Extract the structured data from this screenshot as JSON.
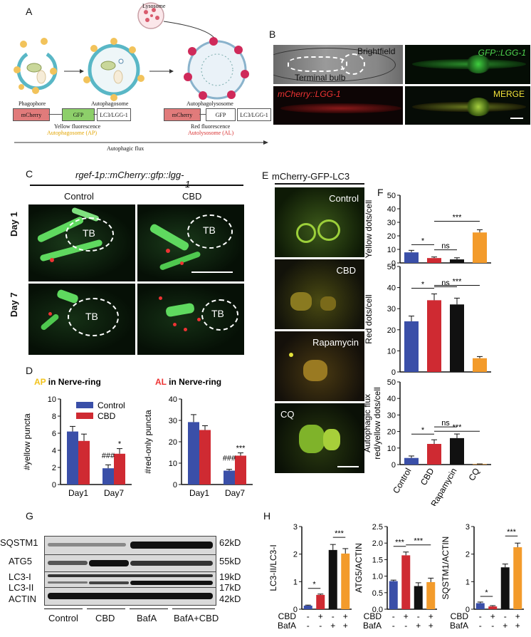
{
  "panels": {
    "A": "A",
    "B": "B",
    "C": "C",
    "D": "D",
    "E": "E",
    "F": "F",
    "G": "G",
    "H": "H"
  },
  "panelA": {
    "lysosome": "Lysosome",
    "phagophore": "Phagophore",
    "autophagosome": "Autophagosome",
    "autophagolysosome": "Autophagolysosome",
    "construct_mcherry": "mCherry",
    "construct_gfp": "GFP",
    "construct_lc3": "LC3/LGG-1",
    "yellow_fluor": "Yellow fluorescence",
    "ap_label": "Autophagosome (AP)",
    "red_fluor": "Red fluorescence",
    "al_label": "Autolysosome (AL)",
    "flux": "Autophagic flux"
  },
  "panelB": {
    "brightfield": "Brightfield",
    "terminal_bulb": "Terminal bulb",
    "gfp": "GFP::LGG-1",
    "mcherry": "mCherry::LGG-1",
    "merge": "MERGE"
  },
  "panelC": {
    "title": "rgef-1p::mCherry::gfp::lgg-",
    "title_wrap": "1",
    "control": "Control",
    "cbd": "CBD",
    "day1": "Day 1",
    "day7": "Day 7",
    "tb": "TB"
  },
  "panelE": {
    "title": "mCherry-GFP-LC3",
    "cells": [
      "Control",
      "CBD",
      "Rapamycin",
      "CQ"
    ]
  },
  "panelG": {
    "rows": [
      "SQSTM1",
      "ATG5",
      "LC3-I",
      "LC3-II",
      "ACTIN"
    ],
    "sizes": [
      "62kD",
      "55kD",
      "19kD",
      "17kD",
      "42kD"
    ],
    "groups": [
      "Control",
      "CBD",
      "BafA",
      "BafA+CBD"
    ]
  },
  "chart_data": [
    {
      "id": "D-left",
      "type": "bar",
      "title_prefix": "AP",
      "title_suffix": " in Nerve-ring",
      "ylabel": "#yellow puncta",
      "ylim": [
        0,
        10
      ],
      "yticks": [
        0,
        2,
        4,
        6,
        8,
        10
      ],
      "categories": [
        "Day1",
        "Day7"
      ],
      "series": [
        {
          "name": "Control",
          "values": [
            6.2,
            1.9
          ],
          "errors": [
            0.6,
            0.4
          ],
          "color": "#3a4fa8"
        },
        {
          "name": "CBD",
          "values": [
            5.1,
            3.6
          ],
          "errors": [
            0.8,
            0.6
          ],
          "color": "#cf2a32"
        }
      ],
      "annotations": [
        {
          "text": "###",
          "category": 1,
          "series": 0
        },
        {
          "text": "*",
          "category": 1,
          "series": 1
        }
      ],
      "legend": "top-right"
    },
    {
      "id": "D-right",
      "type": "bar",
      "title_prefix": "AL",
      "title_suffix": " in Nerve-ring",
      "ylabel": "#red-only puncta",
      "ylim": [
        0,
        40
      ],
      "yticks": [
        0,
        10,
        20,
        30,
        40
      ],
      "categories": [
        "Day1",
        "Day7"
      ],
      "series": [
        {
          "name": "Control",
          "values": [
            29.2,
            6.5
          ],
          "errors": [
            3.5,
            0.6
          ],
          "color": "#3a4fa8"
        },
        {
          "name": "CBD",
          "values": [
            25.5,
            13.5
          ],
          "errors": [
            2.0,
            1.3
          ],
          "color": "#cf2a32"
        }
      ],
      "annotations": [
        {
          "text": "###",
          "category": 1,
          "series": 0
        },
        {
          "text": "***",
          "category": 1,
          "series": 1
        }
      ]
    },
    {
      "id": "F-top",
      "type": "bar",
      "ylabel": "Yellow dots/cell",
      "ylim": [
        0,
        50
      ],
      "yticks": [
        0,
        10,
        20,
        30,
        40,
        50
      ],
      "categories": [
        "Control",
        "CBD",
        "Rapamycin",
        "CQ"
      ],
      "values": [
        7.8,
        3.6,
        2.6,
        22.5
      ],
      "errors": [
        1.5,
        0.8,
        1.2,
        2.0
      ],
      "colors": [
        "#3a4fa8",
        "#cf2a32",
        "#111111",
        "#f39b2b"
      ],
      "significance": [
        {
          "from": 0,
          "to": 1,
          "text": "*"
        },
        {
          "from": 1,
          "to": 2,
          "text": "ns"
        },
        {
          "from": 1,
          "to": 3,
          "text": "***"
        }
      ]
    },
    {
      "id": "F-mid",
      "type": "bar",
      "ylabel": "Red dots/cell",
      "ylim": [
        0,
        50
      ],
      "yticks": [
        0,
        10,
        20,
        30,
        40,
        50
      ],
      "categories": [
        "Control",
        "CBD",
        "Rapamycin",
        "CQ"
      ],
      "values": [
        24.0,
        34.0,
        32.0,
        6.5
      ],
      "errors": [
        2.5,
        3.0,
        3.0,
        0.8
      ],
      "colors": [
        "#3a4fa8",
        "#cf2a32",
        "#111111",
        "#f39b2b"
      ],
      "significance": [
        {
          "from": 0,
          "to": 1,
          "text": "*"
        },
        {
          "from": 1,
          "to": 2,
          "text": "ns"
        },
        {
          "from": 1,
          "to": 3,
          "text": "***"
        }
      ]
    },
    {
      "id": "F-bottom",
      "type": "bar",
      "ylabel": "Autophagic flux\nred/yellow dots/cell",
      "ylim": [
        0,
        50
      ],
      "yticks": [
        0,
        10,
        20,
        30,
        40,
        50
      ],
      "categories": [
        "Control",
        "CBD",
        "Rapamycin",
        "CQ"
      ],
      "values": [
        4.0,
        12.5,
        16.0,
        0.3
      ],
      "errors": [
        1.2,
        2.5,
        2.5,
        0.1
      ],
      "colors": [
        "#3a4fa8",
        "#cf2a32",
        "#111111",
        "#f39b2b"
      ],
      "significance": [
        {
          "from": 0,
          "to": 1,
          "text": "*"
        },
        {
          "from": 1,
          "to": 2,
          "text": "ns"
        },
        {
          "from": 1,
          "to": 3,
          "text": "***"
        }
      ]
    },
    {
      "id": "H-1",
      "type": "bar",
      "ylabel": "LC3-II/LC3-I",
      "ylim": [
        0,
        3
      ],
      "yticks": [
        0,
        1,
        2,
        3
      ],
      "values": [
        0.13,
        0.52,
        2.15,
        2.02
      ],
      "errors": [
        0.02,
        0.03,
        0.2,
        0.18
      ],
      "colors": [
        "#3a4fa8",
        "#cf2a32",
        "#111111",
        "#f39b2b"
      ],
      "cbd": [
        "-",
        "+",
        "-",
        "+"
      ],
      "bafa": [
        "-",
        "-",
        "+",
        "+"
      ],
      "significance": [
        {
          "from": 0,
          "to": 1,
          "text": "*"
        },
        {
          "from": 2,
          "to": 3,
          "text": "***"
        }
      ]
    },
    {
      "id": "H-2",
      "type": "bar",
      "ylabel": "ATG5/ACTIN",
      "ylim": [
        0,
        2.5
      ],
      "yticks": [
        0.0,
        0.5,
        1.0,
        1.5,
        2.0,
        2.5
      ],
      "values": [
        0.85,
        1.63,
        0.7,
        0.82
      ],
      "errors": [
        0.03,
        0.1,
        0.1,
        0.12
      ],
      "colors": [
        "#3a4fa8",
        "#cf2a32",
        "#111111",
        "#f39b2b"
      ],
      "cbd": [
        "-",
        "+",
        "-",
        "+"
      ],
      "bafa": [
        "-",
        "-",
        "+",
        "+"
      ],
      "significance": [
        {
          "from": 0,
          "to": 1,
          "text": "***"
        },
        {
          "from": 1,
          "to": 3,
          "text": "***"
        }
      ]
    },
    {
      "id": "H-3",
      "type": "bar",
      "ylabel": "SQSTM1/ACTIN",
      "ylim": [
        0,
        3
      ],
      "yticks": [
        0,
        1,
        2,
        3
      ],
      "values": [
        0.22,
        0.1,
        1.52,
        2.25
      ],
      "errors": [
        0.04,
        0.03,
        0.12,
        0.15
      ],
      "colors": [
        "#3a4fa8",
        "#cf2a32",
        "#111111",
        "#f39b2b"
      ],
      "cbd": [
        "-",
        "+",
        "-",
        "+"
      ],
      "bafa": [
        "-",
        "-",
        "+",
        "+"
      ],
      "significance": [
        {
          "from": 0,
          "to": 1,
          "text": "*"
        },
        {
          "from": 2,
          "to": 3,
          "text": "***"
        }
      ]
    }
  ],
  "tick_prefix": {
    "cbd": "CBD",
    "bafa": "BafA"
  }
}
